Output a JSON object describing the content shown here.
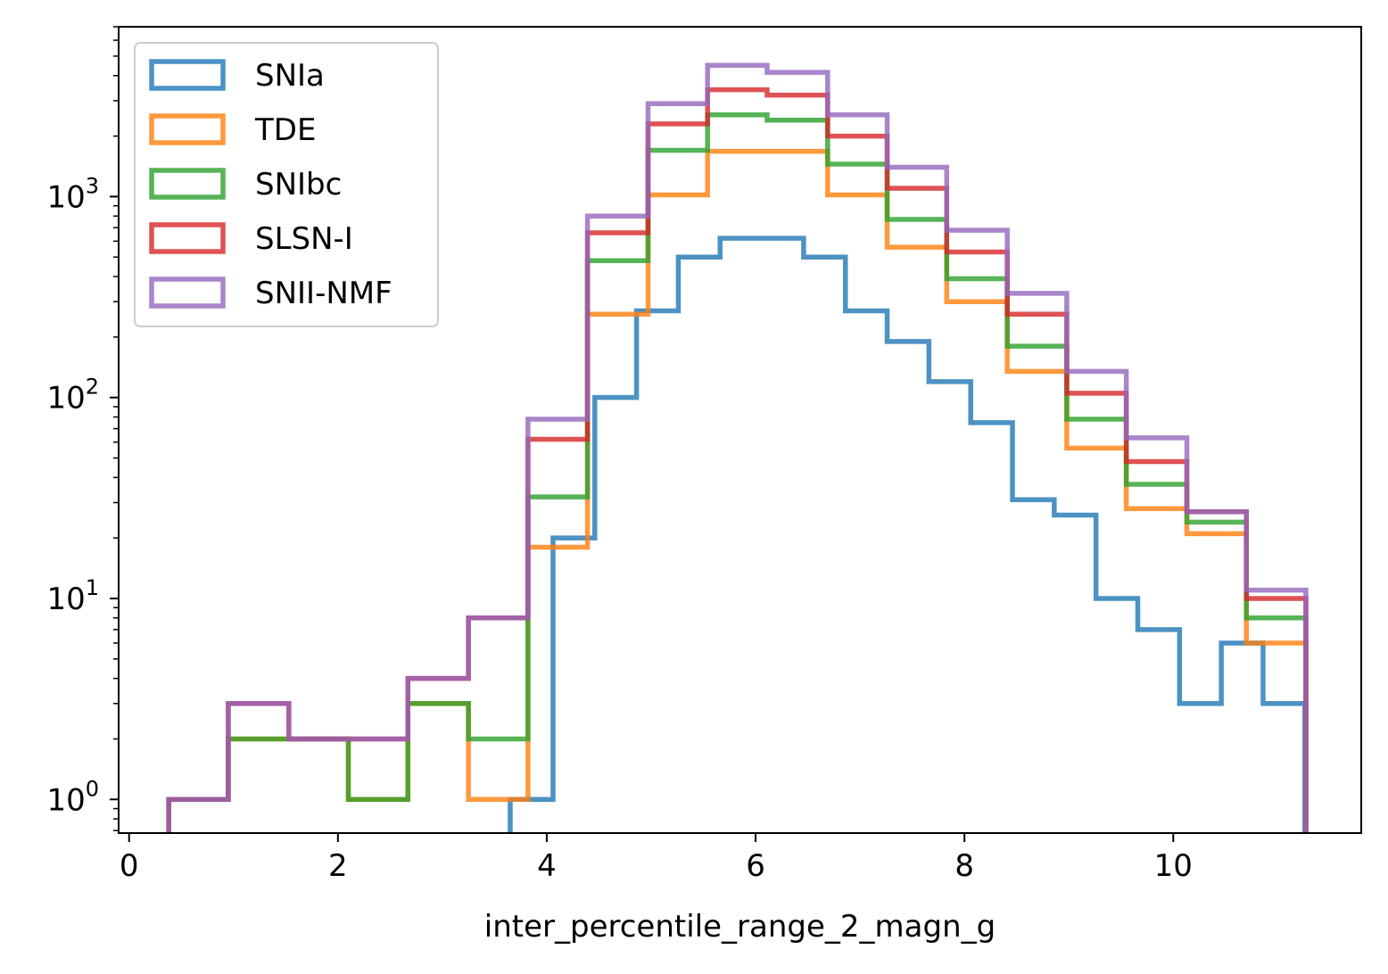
{
  "chart_data": {
    "type": "step-histogram",
    "xlabel": "inter_percentile_range_2_magn_g",
    "ylabel": "",
    "yscale": "log",
    "xlim": [
      -0.1,
      11.8
    ],
    "ylim": [
      0.68,
      7000
    ],
    "x_ticks": [
      0,
      2,
      4,
      6,
      8,
      10
    ],
    "y_ticks": [
      {
        "value": 1,
        "base": "10",
        "exp": "0"
      },
      {
        "value": 10,
        "base": "10",
        "exp": "1"
      },
      {
        "value": 100,
        "base": "10",
        "exp": "2"
      },
      {
        "value": 1000,
        "base": "10",
        "exp": "3"
      }
    ],
    "legend_position": "upper left",
    "series": [
      {
        "name": "SNIa",
        "color": "#1f77b4",
        "edges": [
          3.65,
          4.06,
          4.46,
          4.86,
          5.26,
          5.66,
          6.06,
          6.46,
          6.86,
          7.26,
          7.66,
          8.06,
          8.46,
          8.86,
          9.26,
          9.66,
          10.06,
          10.46,
          10.86,
          11.26
        ],
        "counts": [
          1,
          20,
          100,
          270,
          500,
          620,
          620,
          500,
          270,
          190,
          120,
          75,
          31,
          26,
          10,
          7,
          3,
          6,
          3
        ]
      },
      {
        "name": "TDE",
        "color": "#ff7f0e",
        "edges": [
          0.38,
          0.95,
          1.53,
          2.1,
          2.67,
          3.25,
          3.82,
          4.39,
          4.97,
          5.54,
          6.11,
          6.69,
          7.26,
          7.83,
          8.41,
          8.98,
          9.55,
          10.13,
          10.7,
          11.27
        ],
        "counts": [
          1,
          2,
          2,
          1,
          3,
          1,
          18,
          260,
          1020,
          1680,
          1680,
          1020,
          560,
          300,
          135,
          56,
          28,
          21,
          6
        ]
      },
      {
        "name": "SNIbc",
        "color": "#2ca02c",
        "edges": [
          0.38,
          0.95,
          1.53,
          2.1,
          2.67,
          3.25,
          3.82,
          4.39,
          4.97,
          5.54,
          6.11,
          6.69,
          7.26,
          7.83,
          8.41,
          8.98,
          9.55,
          10.13,
          10.7,
          11.27
        ],
        "counts": [
          1,
          2,
          2,
          1,
          3,
          2,
          32,
          480,
          1700,
          2550,
          2400,
          1450,
          770,
          390,
          180,
          78,
          37,
          24,
          8
        ]
      },
      {
        "name": "SLSN-I",
        "color": "#d62728",
        "edges": [
          0.38,
          0.95,
          1.53,
          2.1,
          2.67,
          3.25,
          3.82,
          4.39,
          4.97,
          5.54,
          6.11,
          6.69,
          7.26,
          7.83,
          8.41,
          8.98,
          9.55,
          10.13,
          10.7,
          11.27
        ],
        "counts": [
          1,
          3,
          2,
          2,
          4,
          8,
          62,
          660,
          2300,
          3400,
          3200,
          2000,
          1100,
          530,
          260,
          105,
          48,
          27,
          10
        ]
      },
      {
        "name": "SNII-NMF",
        "color": "#9467bd",
        "edges": [
          0.38,
          0.95,
          1.53,
          2.1,
          2.67,
          3.25,
          3.82,
          4.39,
          4.97,
          5.54,
          6.11,
          6.69,
          7.26,
          7.83,
          8.41,
          8.98,
          9.55,
          10.13,
          10.7,
          11.27
        ],
        "counts": [
          1,
          3,
          2,
          2,
          4,
          8,
          78,
          800,
          2900,
          4500,
          4150,
          2550,
          1400,
          680,
          330,
          135,
          63,
          27,
          11
        ]
      }
    ]
  }
}
